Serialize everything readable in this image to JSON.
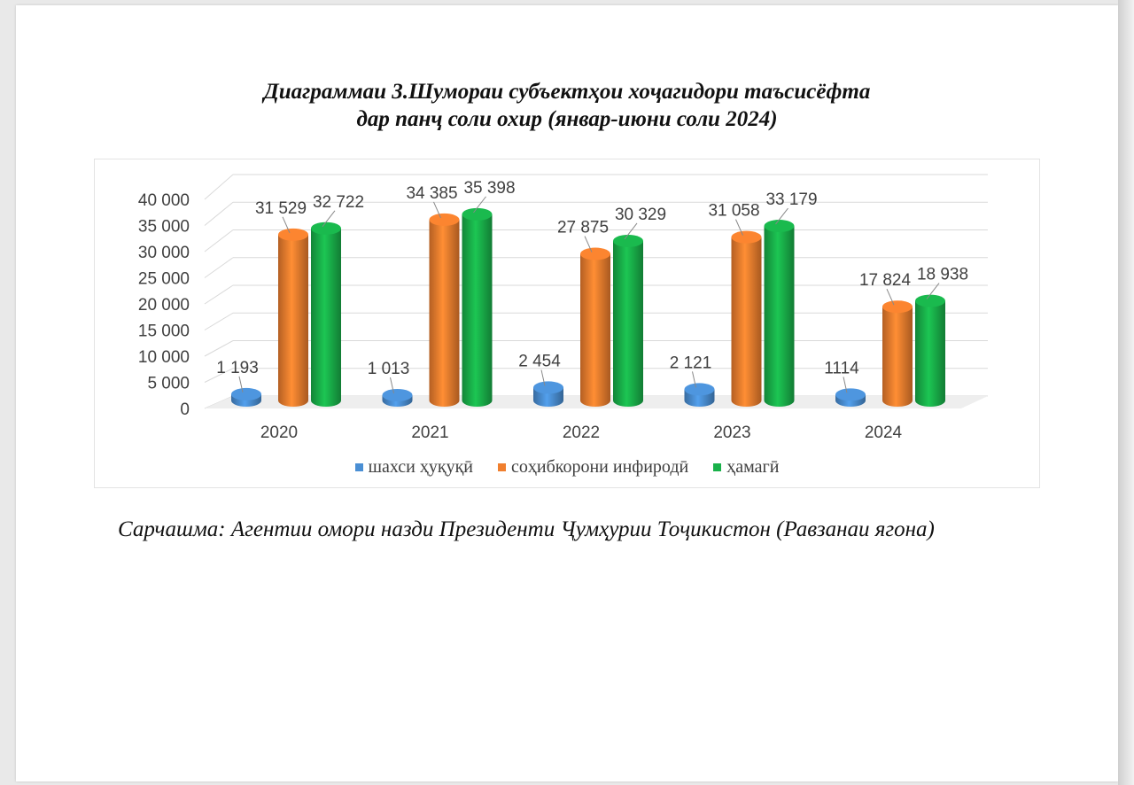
{
  "title": {
    "line1": "Диаграммаи 3.Шумораи субъектҳои хоҷагидори таъсисёфта",
    "line2": "дар панҷ соли охир (январ-июни соли 2024)"
  },
  "source": "Сарчашма: Агентии омори назди Президенти Ҷумҳурии Тоҷикистон (Равзанаи ягона)",
  "chart_data": {
    "type": "bar",
    "title": "",
    "xlabel": "",
    "ylabel": "",
    "ylim": [
      0,
      40000
    ],
    "yticks": [
      "0",
      "5 000",
      "10 000",
      "15 000",
      "20 000",
      "25 000",
      "30 000",
      "35 000",
      "40 000"
    ],
    "categories": [
      "2020",
      "2021",
      "2022",
      "2023",
      "2024"
    ],
    "legend_position": "bottom",
    "grid": true,
    "series": [
      {
        "name": "шахси ҳуқуқӣ",
        "color": "#4a8fd4",
        "values": [
          1193,
          1013,
          2454,
          2121,
          1114
        ],
        "labels": [
          "1 193",
          "1 013",
          "2 454",
          "2 121",
          "1114"
        ]
      },
      {
        "name": "соҳибкорони инфиродӣ",
        "color": "#f07f2e",
        "values": [
          31529,
          34385,
          27875,
          31058,
          17824
        ],
        "labels": [
          "31 529",
          "34 385",
          "27 875",
          "31 058",
          "17 824"
        ]
      },
      {
        "name": "ҳамагӣ",
        "color": "#19b14a",
        "values": [
          32722,
          35398,
          30329,
          33179,
          18938
        ],
        "labels": [
          "32 722",
          "35 398",
          "30 329",
          "33 179",
          "18 938"
        ]
      }
    ]
  }
}
